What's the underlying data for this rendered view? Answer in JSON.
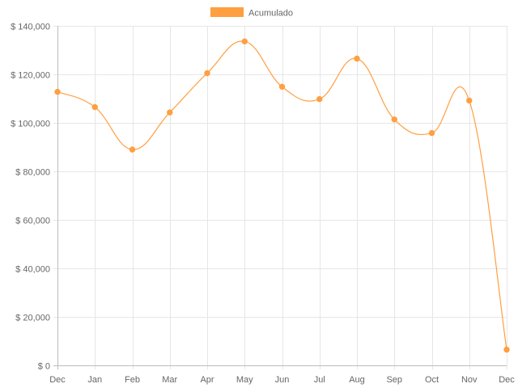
{
  "chart_data": {
    "type": "line",
    "title": "",
    "xlabel": "",
    "ylabel": "",
    "categories": [
      "Dec",
      "Jan",
      "Feb",
      "Mar",
      "Apr",
      "May",
      "Jun",
      "Jul",
      "Aug",
      "Sep",
      "Oct",
      "Nov",
      "Dec"
    ],
    "series": [
      {
        "name": "Acumulado",
        "color": "#ff9f40",
        "values": [
          112800,
          106500,
          89000,
          104300,
          120500,
          133600,
          114900,
          109800,
          126500,
          101400,
          95800,
          109200,
          6500
        ]
      }
    ],
    "ylim": [
      0,
      140000
    ],
    "yticks": [
      0,
      20000,
      40000,
      60000,
      80000,
      100000,
      120000,
      140000
    ],
    "ytick_labels": [
      "$ 0",
      "$ 20,000",
      "$ 40,000",
      "$ 60,000",
      "$ 80,000",
      "$ 100,000",
      "$ 120,000",
      "$ 140,000"
    ],
    "grid": true,
    "legend_position": "top",
    "curve": "smooth"
  }
}
